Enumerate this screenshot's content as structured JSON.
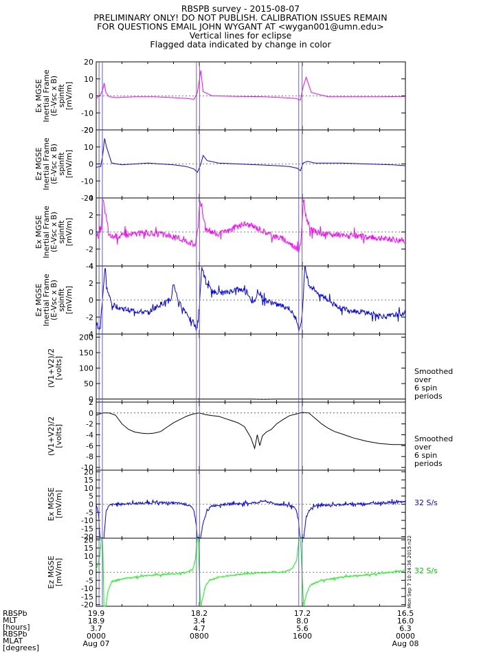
{
  "header": {
    "line1": "RBSPB survey - 2015-08-07",
    "line2": "PRELIMINARY ONLY! DO NOT PUBLISH. CALIBRATION ISSUES REMAIN",
    "line3": "FOR QUESTIONS EMAIL JOHN WYGANT AT <wygan001@umn.edu>",
    "line4": "Vertical lines for eclipse",
    "line5": "Flagged data indicated by change in color"
  },
  "colors": {
    "magenta": "#ff00ff",
    "blue": "#0000ff",
    "green": "#00ff00",
    "black": "#000000",
    "eclipse_line": "#6a5acd"
  },
  "panel_annotations": {
    "smoothed_1": [
      "Smoothed",
      "over",
      "6 spin",
      "periods"
    ],
    "smoothed_2": [
      "Smoothed",
      "over",
      "6 spin",
      "periods"
    ],
    "rate_blue": "32 S/s",
    "rate_green": "32 S/s",
    "timestamp": "Mon Sep 7 10:24:36 2015 n22"
  },
  "bottom_axis": {
    "row_labels": [
      "RBSPb",
      "MLT",
      "[hours]",
      "RBSPb",
      "MLAT",
      "[degrees]"
    ],
    "columns": [
      {
        "v1": "19.9",
        "v2": "18.9",
        "v3": "3.7",
        "time": "0000",
        "date": "Aug 07"
      },
      {
        "v1": "18.2",
        "v2": "3.4",
        "v3": "4.7",
        "time": "0800",
        "date": ""
      },
      {
        "v1": "17.2",
        "v2": "8.0",
        "v3": "5.6",
        "time": "1600",
        "date": ""
      },
      {
        "v1": "16.5",
        "v2": "16.0",
        "v3": "6.3",
        "time": "0000",
        "date": "Aug 08"
      }
    ]
  },
  "chart_data": {
    "type": "line",
    "x_unit": "hours UT from 2015-08-07 00:00",
    "xlim": [
      0,
      24
    ],
    "eclipse_times": [
      0.22,
      0.48,
      7.78,
      8.02,
      15.72,
      15.98
    ],
    "panels": [
      {
        "ylabel": [
          "Ex MGSE",
          "Inertial Frame",
          "(E-Vsc x B)",
          "spinfit",
          "[mV/m]"
        ],
        "ylim": [
          -20,
          20
        ],
        "yticks": [
          -20,
          -10,
          0,
          10,
          20
        ],
        "color": "magenta",
        "smooth": true,
        "x": [
          0,
          0.3,
          0.5,
          0.62,
          0.75,
          1.0,
          1.5,
          3,
          4.5,
          6,
          7,
          7.6,
          7.85,
          8.0,
          8.12,
          8.3,
          9,
          11,
          13,
          14.5,
          15.5,
          15.85,
          16.05,
          16.3,
          16.7,
          18,
          20,
          22,
          24
        ],
        "y": [
          -1.5,
          0.5,
          3.5,
          7.5,
          2.0,
          -0.5,
          -1.0,
          -0.5,
          -0.5,
          -1.0,
          -1.5,
          -2.0,
          2.0,
          9.0,
          15.0,
          2.5,
          0,
          -0.3,
          -0.5,
          -1.0,
          -1.5,
          -2.5,
          5.0,
          11.0,
          2.0,
          -0.5,
          -0.5,
          -0.5,
          -0.3
        ]
      },
      {
        "ylabel": [
          "Ez MGSE",
          "Inertial Frame",
          "(E-Vsc x B)",
          "spinfit",
          "[mV/m]"
        ],
        "ylim": [
          -20,
          20
        ],
        "yticks": [
          -20,
          -10,
          0,
          10,
          20
        ],
        "color": "blue",
        "smooth": true,
        "x": [
          0,
          0.35,
          0.5,
          0.65,
          0.8,
          1.2,
          2,
          4,
          6,
          7,
          7.6,
          7.85,
          8.1,
          8.3,
          8.6,
          9.5,
          11,
          12.5,
          14,
          15,
          15.6,
          15.85,
          16.05,
          16.4,
          17,
          19,
          21,
          23,
          24
        ],
        "y": [
          -2.0,
          -1.5,
          5.0,
          15.0,
          10.0,
          0.5,
          -0.5,
          0.5,
          -0.5,
          -1.5,
          -3.0,
          -5.0,
          -0.5,
          5.0,
          2.0,
          0.5,
          0,
          -0.5,
          -1.0,
          -1.5,
          -2.5,
          -4.0,
          0.5,
          1.5,
          0.5,
          0.5,
          0,
          -0.5,
          -1.0
        ]
      },
      {
        "ylabel": [
          "Ex MGSE",
          "Inertial Frame",
          "(E-Vsc x B)",
          "spinfit",
          "[mV/m]"
        ],
        "ylim": [
          -4,
          4
        ],
        "yticks": [
          -4,
          -2,
          0,
          2,
          4
        ],
        "color": "magenta",
        "smooth": false,
        "x": [
          0,
          0.2,
          0.4,
          0.5,
          0.6,
          0.75,
          1.0,
          1.5,
          2.5,
          3.5,
          4.5,
          5.5,
          6.5,
          7.3,
          7.7,
          7.9,
          8.05,
          8.25,
          8.6,
          9.5,
          10.5,
          11.5,
          12.5,
          13.5,
          14.5,
          15.3,
          15.7,
          15.9,
          16.1,
          16.3,
          16.7,
          17.5,
          19,
          20.5,
          22,
          23,
          24
        ],
        "y": [
          -0.5,
          -0.4,
          0.5,
          4.0,
          3.0,
          2.0,
          -0.5,
          -0.5,
          -0.3,
          -0.1,
          -0.2,
          -0.4,
          -0.8,
          -1.2,
          -1.5,
          0.5,
          4.0,
          2.0,
          0.3,
          -0.3,
          0.3,
          1.0,
          0.5,
          -0.3,
          -0.8,
          -1.6,
          -2.2,
          -1.0,
          4.0,
          1.5,
          0.2,
          -0.2,
          -0.4,
          -0.5,
          -0.7,
          -0.9,
          -1.0
        ],
        "noise": 0.35
      },
      {
        "ylabel": [
          "Ez MGSE",
          "Inertial Frame",
          "(E-Vsc x B)",
          "spinfit",
          "[mV/m]"
        ],
        "ylim": [
          -4,
          4
        ],
        "yticks": [
          -4,
          -2,
          0,
          2,
          4
        ],
        "color": "blue",
        "smooth": false,
        "x": [
          0,
          0.3,
          0.5,
          0.7,
          0.8,
          1.2,
          2,
          3,
          4,
          5,
          5.8,
          6.0,
          6.4,
          7,
          7.5,
          7.8,
          8.0,
          8.2,
          8.5,
          9,
          10,
          11,
          11.7,
          12.2,
          12.6,
          13,
          14,
          15,
          15.6,
          15.8,
          16.0,
          16.2,
          16.5,
          17.5,
          19,
          21,
          22.5,
          24
        ],
        "y": [
          -3.0,
          -3.5,
          0.5,
          4.0,
          1.5,
          -0.5,
          -1.0,
          -1.3,
          -1.5,
          -0.5,
          0.0,
          2.0,
          -0.3,
          -1.5,
          -2.5,
          -3.5,
          -1.0,
          4.0,
          2.0,
          1.0,
          0.8,
          1.3,
          1.0,
          -0.5,
          1.0,
          0.0,
          -0.5,
          -1.0,
          -2.5,
          -3.5,
          -1.5,
          4.0,
          1.8,
          0.5,
          -1.0,
          -1.5,
          -2.0,
          -1.5
        ],
        "noise": 0.3
      },
      {
        "ylabel": [
          "(V1+V2)/2",
          "[volts]"
        ],
        "ylim": [
          -10,
          210
        ],
        "yticks": [
          0,
          50,
          100,
          150,
          200
        ],
        "color": "black",
        "smooth": true,
        "x": [
          0,
          4,
          8,
          12,
          13,
          14,
          16,
          20,
          24
        ],
        "y": [
          0,
          0,
          0,
          0,
          -1,
          0,
          0,
          0,
          0
        ]
      },
      {
        "ylabel": [
          "(V1+V2)/2",
          "[volts]"
        ],
        "ylim": [
          -10.5,
          2
        ],
        "yticks": [
          -10,
          -8,
          -6,
          -4,
          -2,
          0,
          2
        ],
        "color": "black",
        "smooth": false,
        "x": [
          0,
          0.5,
          1.0,
          1.5,
          2.0,
          2.5,
          3.0,
          3.5,
          4.0,
          4.5,
          5.0,
          5.5,
          6.0,
          6.5,
          7.0,
          7.5,
          8.0,
          8.5,
          9.0,
          9.5,
          10.0,
          10.5,
          11.0,
          11.5,
          12.0,
          12.3,
          12.5,
          12.7,
          12.9,
          13.2,
          13.6,
          14.0,
          14.5,
          15.0,
          15.5,
          16.0,
          16.5,
          17.0,
          17.5,
          18.0,
          18.5,
          19.0,
          19.5,
          20.0,
          20.5,
          21.0,
          21.5,
          22.0,
          22.5,
          23.0,
          24.0
        ],
        "y": [
          -0.4,
          0.0,
          0.0,
          -0.4,
          -2.0,
          -3.0,
          -3.5,
          -3.7,
          -3.8,
          -3.7,
          -3.4,
          -2.6,
          -1.8,
          -1.2,
          -0.6,
          -0.2,
          0.0,
          -0.3,
          -0.5,
          -0.6,
          -1.0,
          -1.4,
          -1.8,
          -2.5,
          -4.5,
          -6.5,
          -4.0,
          -6.0,
          -4.2,
          -3.5,
          -3.0,
          -2.0,
          -1.2,
          -0.5,
          -0.2,
          0.1,
          0.0,
          -1.0,
          -2.0,
          -2.8,
          -3.4,
          -3.8,
          -4.2,
          -4.6,
          -4.9,
          -5.2,
          -5.4,
          -5.6,
          -5.7,
          -5.8,
          -5.8
        ]
      },
      {
        "ylabel": [
          "Ex MGSE",
          "[mV/m]"
        ],
        "ylim": [
          -21,
          21
        ],
        "yticks": [
          -20,
          -15,
          -10,
          -5,
          0,
          5,
          10,
          15,
          20
        ],
        "color": "blue",
        "smooth": false,
        "x": [
          0,
          0.15,
          0.3,
          0.6,
          0.75,
          0.9,
          1.1,
          1.5,
          3,
          5,
          6.5,
          7.2,
          7.6,
          7.75,
          7.85,
          8.1,
          8.3,
          8.6,
          9.0,
          10,
          11.5,
          12.5,
          13,
          14,
          15,
          15.5,
          15.7,
          15.82,
          16.1,
          16.3,
          16.6,
          17,
          18,
          20,
          22,
          24
        ],
        "y": [
          0,
          -5,
          -21,
          -21,
          -5,
          -2,
          -0.5,
          0,
          0.5,
          1.0,
          0.5,
          -0.5,
          -4,
          -12,
          -21,
          -21,
          -12,
          -4,
          -1,
          0,
          0.5,
          1.0,
          2.0,
          0,
          -0.5,
          -3,
          -10,
          -21,
          -21,
          -8,
          -3,
          -1,
          -0.5,
          0,
          0.8,
          1.5
        ],
        "noise": 0.7
      },
      {
        "ylabel": [
          "Ez MGSE",
          "[mV/m]"
        ],
        "ylim": [
          -21,
          21
        ],
        "yticks": [
          -20,
          -15,
          -10,
          -5,
          0,
          5,
          10,
          15,
          20
        ],
        "color": "green",
        "smooth": false,
        "x": [
          0,
          0.15,
          0.3,
          0.4,
          0.5,
          0.6,
          0.75,
          0.9,
          1.2,
          2,
          3,
          4,
          5,
          6,
          7,
          7.5,
          7.7,
          7.82,
          7.9,
          8.1,
          8.3,
          8.5,
          8.8,
          9.5,
          10.5,
          11.5,
          12.5,
          13.5,
          14.5,
          15.2,
          15.55,
          15.75,
          15.85,
          16.1,
          16.3,
          16.6,
          17.5,
          19,
          21,
          23,
          24
        ],
        "y": [
          2,
          5,
          12,
          21,
          21,
          -21,
          -21,
          -12,
          -6,
          -4,
          -3,
          -2,
          -1.5,
          -1,
          0,
          2,
          8,
          21,
          21,
          -21,
          -15,
          -8,
          -5,
          -3,
          -2,
          -1,
          -0.5,
          0,
          0,
          2,
          7,
          21,
          21,
          -21,
          -14,
          -8,
          -5,
          -3,
          -1.5,
          0,
          1
        ],
        "noise": 0.4
      }
    ]
  }
}
